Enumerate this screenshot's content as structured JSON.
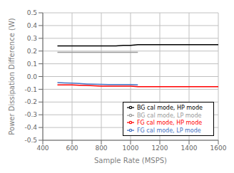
{
  "chart_data": {
    "type": "line",
    "xlabel": "Sample Rate (MSPS)",
    "ylabel": "Power Dissipation Difference (W)",
    "x": [
      500,
      550,
      600,
      650,
      700,
      750,
      800,
      850,
      900,
      950,
      1000,
      1050,
      1100,
      1150,
      1200,
      1250,
      1300,
      1350,
      1400,
      1450,
      1500,
      1550,
      1600
    ],
    "series": [
      {
        "name": "BG cal mode, HP mode",
        "color": "#000000",
        "values": [
          0.24,
          0.24,
          0.24,
          0.24,
          0.24,
          0.24,
          0.24,
          0.24,
          0.24,
          0.245,
          0.245,
          0.25,
          0.25,
          0.25,
          0.25,
          0.25,
          0.25,
          0.25,
          0.25,
          0.25,
          0.25,
          0.25,
          0.25
        ]
      },
      {
        "name": "FG cal mode, HP mode",
        "color": "#ff0000",
        "values": [
          -0.065,
          -0.065,
          -0.065,
          -0.068,
          -0.07,
          -0.072,
          -0.075,
          -0.075,
          -0.075,
          -0.075,
          -0.075,
          -0.08,
          -0.08,
          -0.08,
          -0.08,
          -0.08,
          -0.08,
          -0.08,
          -0.08,
          -0.08,
          -0.08,
          -0.08,
          -0.08
        ]
      },
      {
        "name": "BG cal mode, LP mode",
        "color": "#999999",
        "values": [
          0.19,
          0.19,
          0.19,
          0.19,
          0.19,
          0.19,
          0.19,
          0.19,
          0.19,
          0.19,
          0.19,
          0.19,
          null,
          null,
          null,
          null,
          null,
          null,
          null,
          null,
          null,
          null,
          null
        ]
      },
      {
        "name": "FG cal mode, LP mode",
        "color": "#4472c4",
        "values": [
          -0.048,
          -0.05,
          -0.052,
          -0.055,
          -0.058,
          -0.06,
          -0.062,
          -0.063,
          -0.063,
          -0.063,
          -0.063,
          -0.065,
          null,
          null,
          null,
          null,
          null,
          null,
          null,
          null,
          null,
          null,
          null
        ]
      }
    ],
    "xlim": [
      400,
      1600
    ],
    "ylim": [
      -0.5,
      0.5
    ],
    "xticks": [
      400,
      600,
      800,
      1000,
      1200,
      1400,
      1600
    ],
    "yticks": [
      -0.5,
      -0.4,
      -0.3,
      -0.2,
      -0.1,
      {
        "value": 0,
        "label": "0.0"
      },
      0.1,
      0.2,
      0.3,
      0.4,
      0.5
    ],
    "grid": true,
    "legend": "lower right"
  }
}
